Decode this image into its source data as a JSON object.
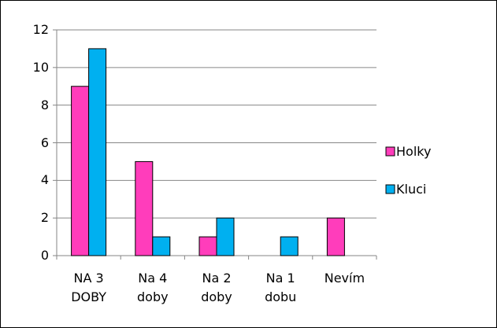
{
  "chart_data": {
    "type": "bar",
    "categories": [
      "NA 3 DOBY",
      "Na 4 doby",
      "Na 2 doby",
      "Na 1 dobu",
      "Nevím"
    ],
    "series": [
      {
        "name": "Holky",
        "color": "#ff3dbb",
        "values": [
          9,
          5,
          1,
          0,
          2
        ]
      },
      {
        "name": "Kluci",
        "color": "#00b0f0",
        "values": [
          11,
          1,
          2,
          1,
          0
        ]
      }
    ],
    "ylim": [
      0,
      12
    ],
    "yticks": [
      0,
      2,
      4,
      6,
      8,
      10,
      12
    ],
    "grid": true,
    "legend": "right"
  }
}
